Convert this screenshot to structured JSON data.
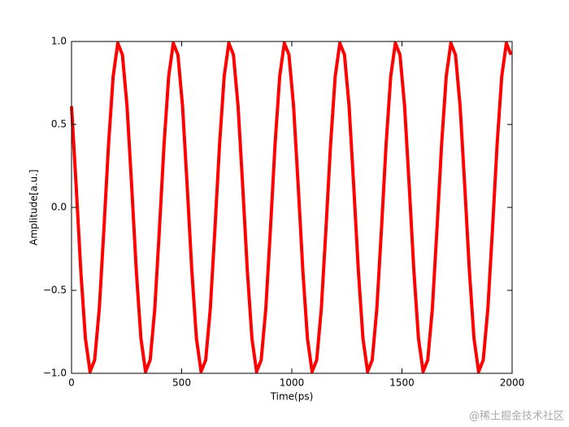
{
  "chart_data": {
    "type": "line",
    "xlabel": "Time(ps)",
    "ylabel": "Amplitude[a.u.]",
    "x": [
      0,
      21,
      42,
      63,
      84,
      105,
      126,
      147,
      168,
      189,
      210,
      231,
      252,
      273,
      294,
      315,
      336,
      357,
      378,
      399,
      420,
      441,
      462,
      483,
      504,
      525,
      546,
      567,
      588,
      609,
      630,
      651,
      672,
      693,
      714,
      735,
      756,
      777,
      798,
      819,
      840,
      861,
      882,
      903,
      924,
      945,
      966,
      987,
      1008,
      1029,
      1050,
      1071,
      1092,
      1113,
      1134,
      1155,
      1176,
      1197,
      1218,
      1239,
      1260,
      1281,
      1302,
      1323,
      1344,
      1365,
      1386,
      1407,
      1428,
      1449,
      1470,
      1491,
      1512,
      1533,
      1554,
      1575,
      1596,
      1617,
      1638,
      1659,
      1680,
      1701,
      1722,
      1743,
      1764,
      1785,
      1806,
      1827,
      1848,
      1869,
      1890,
      1911,
      1932,
      1953,
      1974,
      1995
    ],
    "series": [
      {
        "color": "#ff0000",
        "values": [
          0.61,
          0.13,
          -0.38,
          -0.79,
          -0.99,
          -0.92,
          -0.61,
          -0.13,
          0.38,
          0.79,
          0.99,
          0.92,
          0.61,
          0.13,
          -0.38,
          -0.79,
          -0.99,
          -0.92,
          -0.61,
          -0.13,
          0.38,
          0.79,
          0.99,
          0.92,
          0.61,
          0.13,
          -0.38,
          -0.79,
          -0.99,
          -0.92,
          -0.61,
          -0.13,
          0.38,
          0.79,
          0.99,
          0.92,
          0.61,
          0.13,
          -0.38,
          -0.79,
          -0.99,
          -0.92,
          -0.61,
          -0.13,
          0.38,
          0.79,
          0.99,
          0.92,
          0.61,
          0.13,
          -0.38,
          -0.79,
          -0.99,
          -0.92,
          -0.61,
          -0.13,
          0.38,
          0.79,
          0.99,
          0.92,
          0.61,
          0.13,
          -0.38,
          -0.79,
          -0.99,
          -0.92,
          -0.61,
          -0.13,
          0.38,
          0.79,
          0.99,
          0.92,
          0.61,
          0.13,
          -0.38,
          -0.79,
          -0.99,
          -0.92,
          -0.61,
          -0.13,
          0.38,
          0.79,
          0.99,
          0.92,
          0.61,
          0.13,
          -0.38,
          -0.79,
          -0.99,
          -0.92,
          -0.61,
          -0.13,
          0.38,
          0.79,
          0.99,
          0.92
        ]
      }
    ],
    "xlim": [
      0,
      2000
    ],
    "xticks": [
      0,
      500,
      1000,
      1500,
      2000
    ],
    "ylim": [
      -1,
      1
    ],
    "yticks": [
      {
        "value": -1,
        "label": "−1.0"
      },
      {
        "value": -0.5,
        "label": "−0.5"
      },
      {
        "value": 0,
        "label": "0.0"
      },
      {
        "value": 0.5,
        "label": "0.5"
      },
      {
        "value": 1,
        "label": "1.0"
      }
    ],
    "grid": false
  },
  "watermark": "@稀土掘金技术社区"
}
